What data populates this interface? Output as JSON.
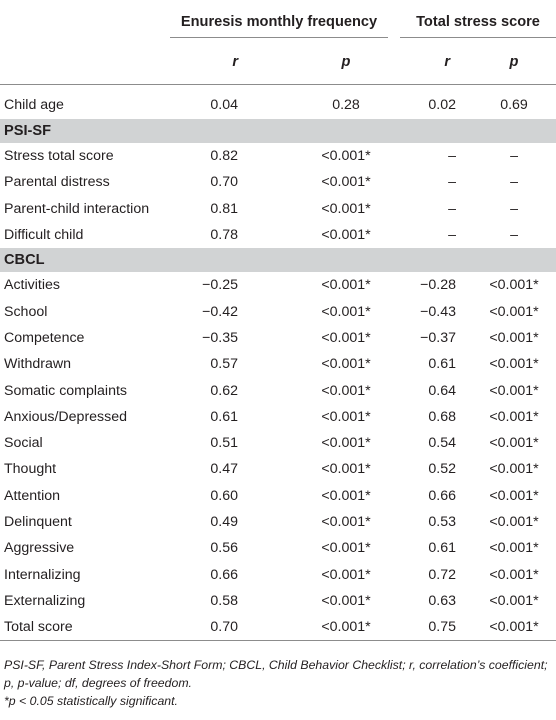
{
  "table": {
    "group_headers": [
      "Enuresis monthly frequency",
      "Total stress score"
    ],
    "sub_headers": [
      "r",
      "p",
      "r",
      "p"
    ],
    "child_age": {
      "label": "Child age",
      "values": [
        "0.04",
        "0.28",
        "0.02",
        "0.69"
      ]
    },
    "sections": [
      {
        "title": "PSI-SF",
        "rows": [
          {
            "label": "Stress total score",
            "values": [
              "0.82",
              "<0.001*",
              "–",
              "–"
            ]
          },
          {
            "label": "Parental distress",
            "values": [
              "0.70",
              "<0.001*",
              "–",
              "–"
            ]
          },
          {
            "label": "Parent-child interaction",
            "values": [
              "0.81",
              "<0.001*",
              "–",
              "–"
            ]
          },
          {
            "label": "Difficult child",
            "values": [
              "0.78",
              "<0.001*",
              "–",
              "–"
            ]
          }
        ]
      },
      {
        "title": "CBCL",
        "rows": [
          {
            "label": "Activities",
            "values": [
              "−0.25",
              "<0.001*",
              "−0.28",
              "<0.001*"
            ]
          },
          {
            "label": "School",
            "values": [
              "−0.42",
              "<0.001*",
              "−0.43",
              "<0.001*"
            ]
          },
          {
            "label": "Competence",
            "values": [
              "−0.35",
              "<0.001*",
              "−0.37",
              "<0.001*"
            ]
          },
          {
            "label": "Withdrawn",
            "values": [
              "0.57",
              "<0.001*",
              "0.61",
              "<0.001*"
            ]
          },
          {
            "label": "Somatic complaints",
            "values": [
              "0.62",
              "<0.001*",
              "0.64",
              "<0.001*"
            ]
          },
          {
            "label": "Anxious/Depressed",
            "values": [
              "0.61",
              "<0.001*",
              "0.68",
              "<0.001*"
            ]
          },
          {
            "label": "Social",
            "values": [
              "0.51",
              "<0.001*",
              "0.54",
              "<0.001*"
            ]
          },
          {
            "label": "Thought",
            "values": [
              "0.47",
              "<0.001*",
              "0.52",
              "<0.001*"
            ]
          },
          {
            "label": "Attention",
            "values": [
              "0.60",
              "<0.001*",
              "0.66",
              "<0.001*"
            ]
          },
          {
            "label": "Delinquent",
            "values": [
              "0.49",
              "<0.001*",
              "0.53",
              "<0.001*"
            ]
          },
          {
            "label": "Aggressive",
            "values": [
              "0.56",
              "<0.001*",
              "0.61",
              "<0.001*"
            ]
          },
          {
            "label": "Internalizing",
            "values": [
              "0.66",
              "<0.001*",
              "0.72",
              "<0.001*"
            ]
          },
          {
            "label": "Externalizing",
            "values": [
              "0.58",
              "<0.001*",
              "0.63",
              "<0.001*"
            ]
          },
          {
            "label": "Total score",
            "values": [
              "0.70",
              "<0.001*",
              "0.75",
              "<0.001*"
            ]
          }
        ]
      }
    ]
  },
  "footnotes": {
    "abbreviations": "PSI-SF, Parent Stress Index-Short Form; CBCL, Child Behavior Checklist; r, correlation’s coefficient; p, p-value; df, degrees of freedom.",
    "significance": "*p < 0.05 statistically significant."
  }
}
